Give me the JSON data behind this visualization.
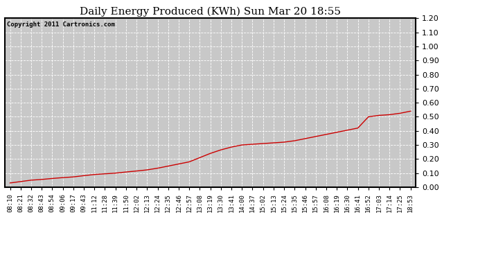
{
  "title": "Daily Energy Produced (KWh) Sun Mar 20 18:55",
  "copyright_text": "Copyright 2011 Cartronics.com",
  "x_labels": [
    "08:10",
    "08:21",
    "08:32",
    "08:43",
    "08:54",
    "09:06",
    "09:17",
    "09:43",
    "11:12",
    "11:28",
    "11:39",
    "11:50",
    "12:02",
    "12:13",
    "12:24",
    "12:35",
    "12:46",
    "12:57",
    "13:08",
    "13:19",
    "13:30",
    "13:41",
    "14:00",
    "14:37",
    "15:02",
    "15:13",
    "15:24",
    "15:35",
    "15:46",
    "15:57",
    "16:08",
    "16:19",
    "16:30",
    "16:41",
    "16:52",
    "17:03",
    "17:14",
    "17:25",
    "18:53"
  ],
  "y_values": [
    0.03,
    0.04,
    0.05,
    0.055,
    0.062,
    0.068,
    0.073,
    0.082,
    0.09,
    0.095,
    0.1,
    0.108,
    0.115,
    0.123,
    0.135,
    0.15,
    0.165,
    0.18,
    0.21,
    0.24,
    0.265,
    0.285,
    0.3,
    0.305,
    0.31,
    0.315,
    0.32,
    0.33,
    0.345,
    0.36,
    0.375,
    0.39,
    0.405,
    0.42,
    0.5,
    0.51,
    0.515,
    0.525,
    0.54
  ],
  "line_color": "#cc0000",
  "fig_bg_color": "#ffffff",
  "plot_bg_color": "#c8c8c8",
  "grid_color": "#ffffff",
  "border_color": "#000000",
  "y_min": 0.0,
  "y_max": 1.2,
  "y_ticks": [
    0.0,
    0.1,
    0.2,
    0.3,
    0.4,
    0.5,
    0.6,
    0.7,
    0.8,
    0.9,
    1.0,
    1.1,
    1.2
  ],
  "title_fontsize": 11,
  "copyright_fontsize": 6.5,
  "tick_fontsize": 6.5,
  "y_tick_fontsize": 8
}
